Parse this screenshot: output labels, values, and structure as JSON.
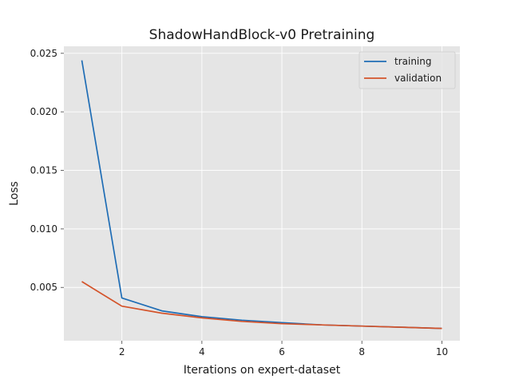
{
  "chart_data": {
    "type": "line",
    "title": "ShadowHandBlock-v0 Pretraining",
    "xlabel": "Iterations on expert-dataset",
    "ylabel": "Loss",
    "x": [
      1,
      2,
      3,
      4,
      5,
      6,
      7,
      8,
      9,
      10
    ],
    "xlim": [
      0.55,
      10.45
    ],
    "ylim": [
      0.00045,
      0.0256
    ],
    "xticks": [
      2,
      4,
      6,
      8,
      10
    ],
    "yticks": [
      0.005,
      0.01,
      0.015,
      0.02,
      0.025
    ],
    "ytick_labels": [
      "0.005",
      "0.010",
      "0.015",
      "0.020",
      "0.025"
    ],
    "grid": true,
    "legend_position": "top-right",
    "background_color": "#e5e5e5",
    "grid_color": "#ffffff",
    "series": [
      {
        "name": "training",
        "color": "#1f6db5",
        "values": [
          0.0244,
          0.0041,
          0.003,
          0.0025,
          0.0022,
          0.002,
          0.0018,
          0.0017,
          0.0016,
          0.0015
        ]
      },
      {
        "name": "validation",
        "color": "#d4532a",
        "values": [
          0.0055,
          0.0034,
          0.0028,
          0.0024,
          0.0021,
          0.0019,
          0.0018,
          0.0017,
          0.0016,
          0.0015
        ]
      }
    ]
  }
}
